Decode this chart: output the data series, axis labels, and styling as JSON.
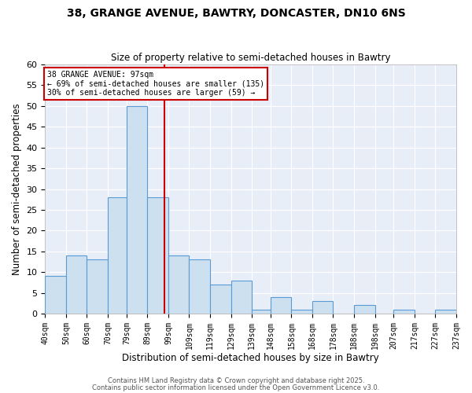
{
  "title": "38, GRANGE AVENUE, BAWTRY, DONCASTER, DN10 6NS",
  "subtitle": "Size of property relative to semi-detached houses in Bawtry",
  "xlabel": "Distribution of semi-detached houses by size in Bawtry",
  "ylabel": "Number of semi-detached properties",
  "bins": [
    40,
    50,
    60,
    70,
    79,
    89,
    99,
    109,
    119,
    129,
    139,
    148,
    158,
    168,
    178,
    188,
    198,
    207,
    217,
    227,
    237
  ],
  "counts": [
    9,
    14,
    13,
    28,
    50,
    28,
    14,
    13,
    7,
    8,
    1,
    4,
    1,
    3,
    0,
    2,
    0,
    1,
    0,
    1
  ],
  "tick_labels": [
    "40sqm",
    "50sqm",
    "60sqm",
    "70sqm",
    "79sqm",
    "89sqm",
    "99sqm",
    "109sqm",
    "119sqm",
    "129sqm",
    "139sqm",
    "148sqm",
    "158sqm",
    "168sqm",
    "178sqm",
    "188sqm",
    "198sqm",
    "207sqm",
    "217sqm",
    "227sqm",
    "237sqm"
  ],
  "bar_color": "#cce0f0",
  "bar_edge_color": "#5b9bd5",
  "vline_x": 97,
  "vline_color": "#cc0000",
  "annotation_title": "38 GRANGE AVENUE: 97sqm",
  "annotation_line1": "← 69% of semi-detached houses are smaller (135)",
  "annotation_line2": "30% of semi-detached houses are larger (59) →",
  "annotation_box_edge": "#cc0000",
  "ylim": [
    0,
    60
  ],
  "background_color": "#e8eef8",
  "footer1": "Contains HM Land Registry data © Crown copyright and database right 2025.",
  "footer2": "Contains public sector information licensed under the Open Government Licence v3.0."
}
